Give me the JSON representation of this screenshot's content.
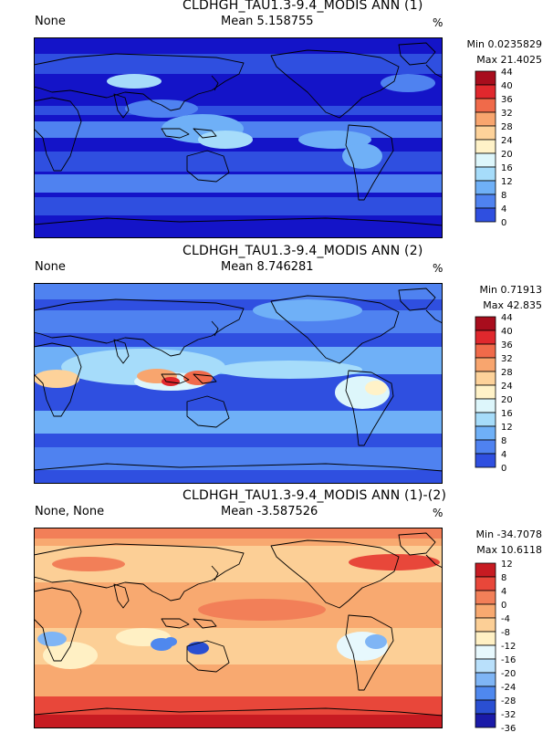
{
  "colors": {
    "scale_pos": [
      "#1414c8",
      "#2f4fe0",
      "#4f82f0",
      "#6fb0f7",
      "#a6dcfa",
      "#ddf6fb",
      "#fff2c8",
      "#fdd29a",
      "#f8a56e",
      "#f06a4a",
      "#e0282d",
      "#a80d1d"
    ],
    "scale_diff": [
      "#1a1aa8",
      "#2a4fd2",
      "#4f88ee",
      "#7fb5f5",
      "#b9e0fb",
      "#e7f8fd",
      "#fff0c4",
      "#fccf96",
      "#f8a970",
      "#f27f58",
      "#e8473a",
      "#c71b22"
    ],
    "land_outline": "#000000"
  },
  "panels": [
    {
      "title": "CLDHGH_TAU1.3-9.4_MODIS ANN (1)",
      "left_label": "None",
      "mean": "Mean 5.158755",
      "unit": "%",
      "min": "Min 0.0235829",
      "max": "Max 21.4025",
      "cbar_labels": [
        "44",
        "40",
        "36",
        "32",
        "28",
        "24",
        "20",
        "16",
        "12",
        "8",
        "4",
        "0"
      ]
    },
    {
      "title": "CLDHGH_TAU1.3-9.4_MODIS ANN (2)",
      "left_label": "None",
      "mean": "Mean 8.746281",
      "unit": "%",
      "min": "Min 0.71913",
      "max": "Max 42.835",
      "cbar_labels": [
        "44",
        "40",
        "36",
        "32",
        "28",
        "24",
        "20",
        "16",
        "12",
        "8",
        "4",
        "0"
      ]
    },
    {
      "title": "CLDHGH_TAU1.3-9.4_MODIS ANN (1)-(2)",
      "left_label": "None, None",
      "mean": "Mean -3.587526",
      "unit": "%",
      "min": "Min -34.7078",
      "max": "Max 10.6118",
      "cbar_labels": [
        "12",
        "8",
        "4",
        "0",
        "-4",
        "-8",
        "-12",
        "-16",
        "-20",
        "-24",
        "-28",
        "-32",
        "-36"
      ]
    }
  ],
  "chart_data": [
    {
      "type": "heatmap",
      "title": "CLDHGH_TAU1.3-9.4_MODIS ANN (1)",
      "units": "%",
      "mean": 5.158755,
      "min": 0.0235829,
      "max": 21.4025,
      "levels": [
        0,
        4,
        8,
        12,
        16,
        20,
        24,
        28,
        32,
        36,
        40,
        44
      ]
    },
    {
      "type": "heatmap",
      "title": "CLDHGH_TAU1.3-9.4_MODIS ANN (2)",
      "units": "%",
      "mean": 8.746281,
      "min": 0.71913,
      "max": 42.835,
      "levels": [
        0,
        4,
        8,
        12,
        16,
        20,
        24,
        28,
        32,
        36,
        40,
        44
      ]
    },
    {
      "type": "heatmap",
      "title": "CLDHGH_TAU1.3-9.4_MODIS ANN (1)-(2)",
      "units": "%",
      "mean": -3.587526,
      "min": -34.7078,
      "max": 10.6118,
      "levels": [
        -36,
        -32,
        -28,
        -24,
        -20,
        -16,
        -12,
        -8,
        -4,
        0,
        4,
        8,
        12
      ]
    }
  ]
}
